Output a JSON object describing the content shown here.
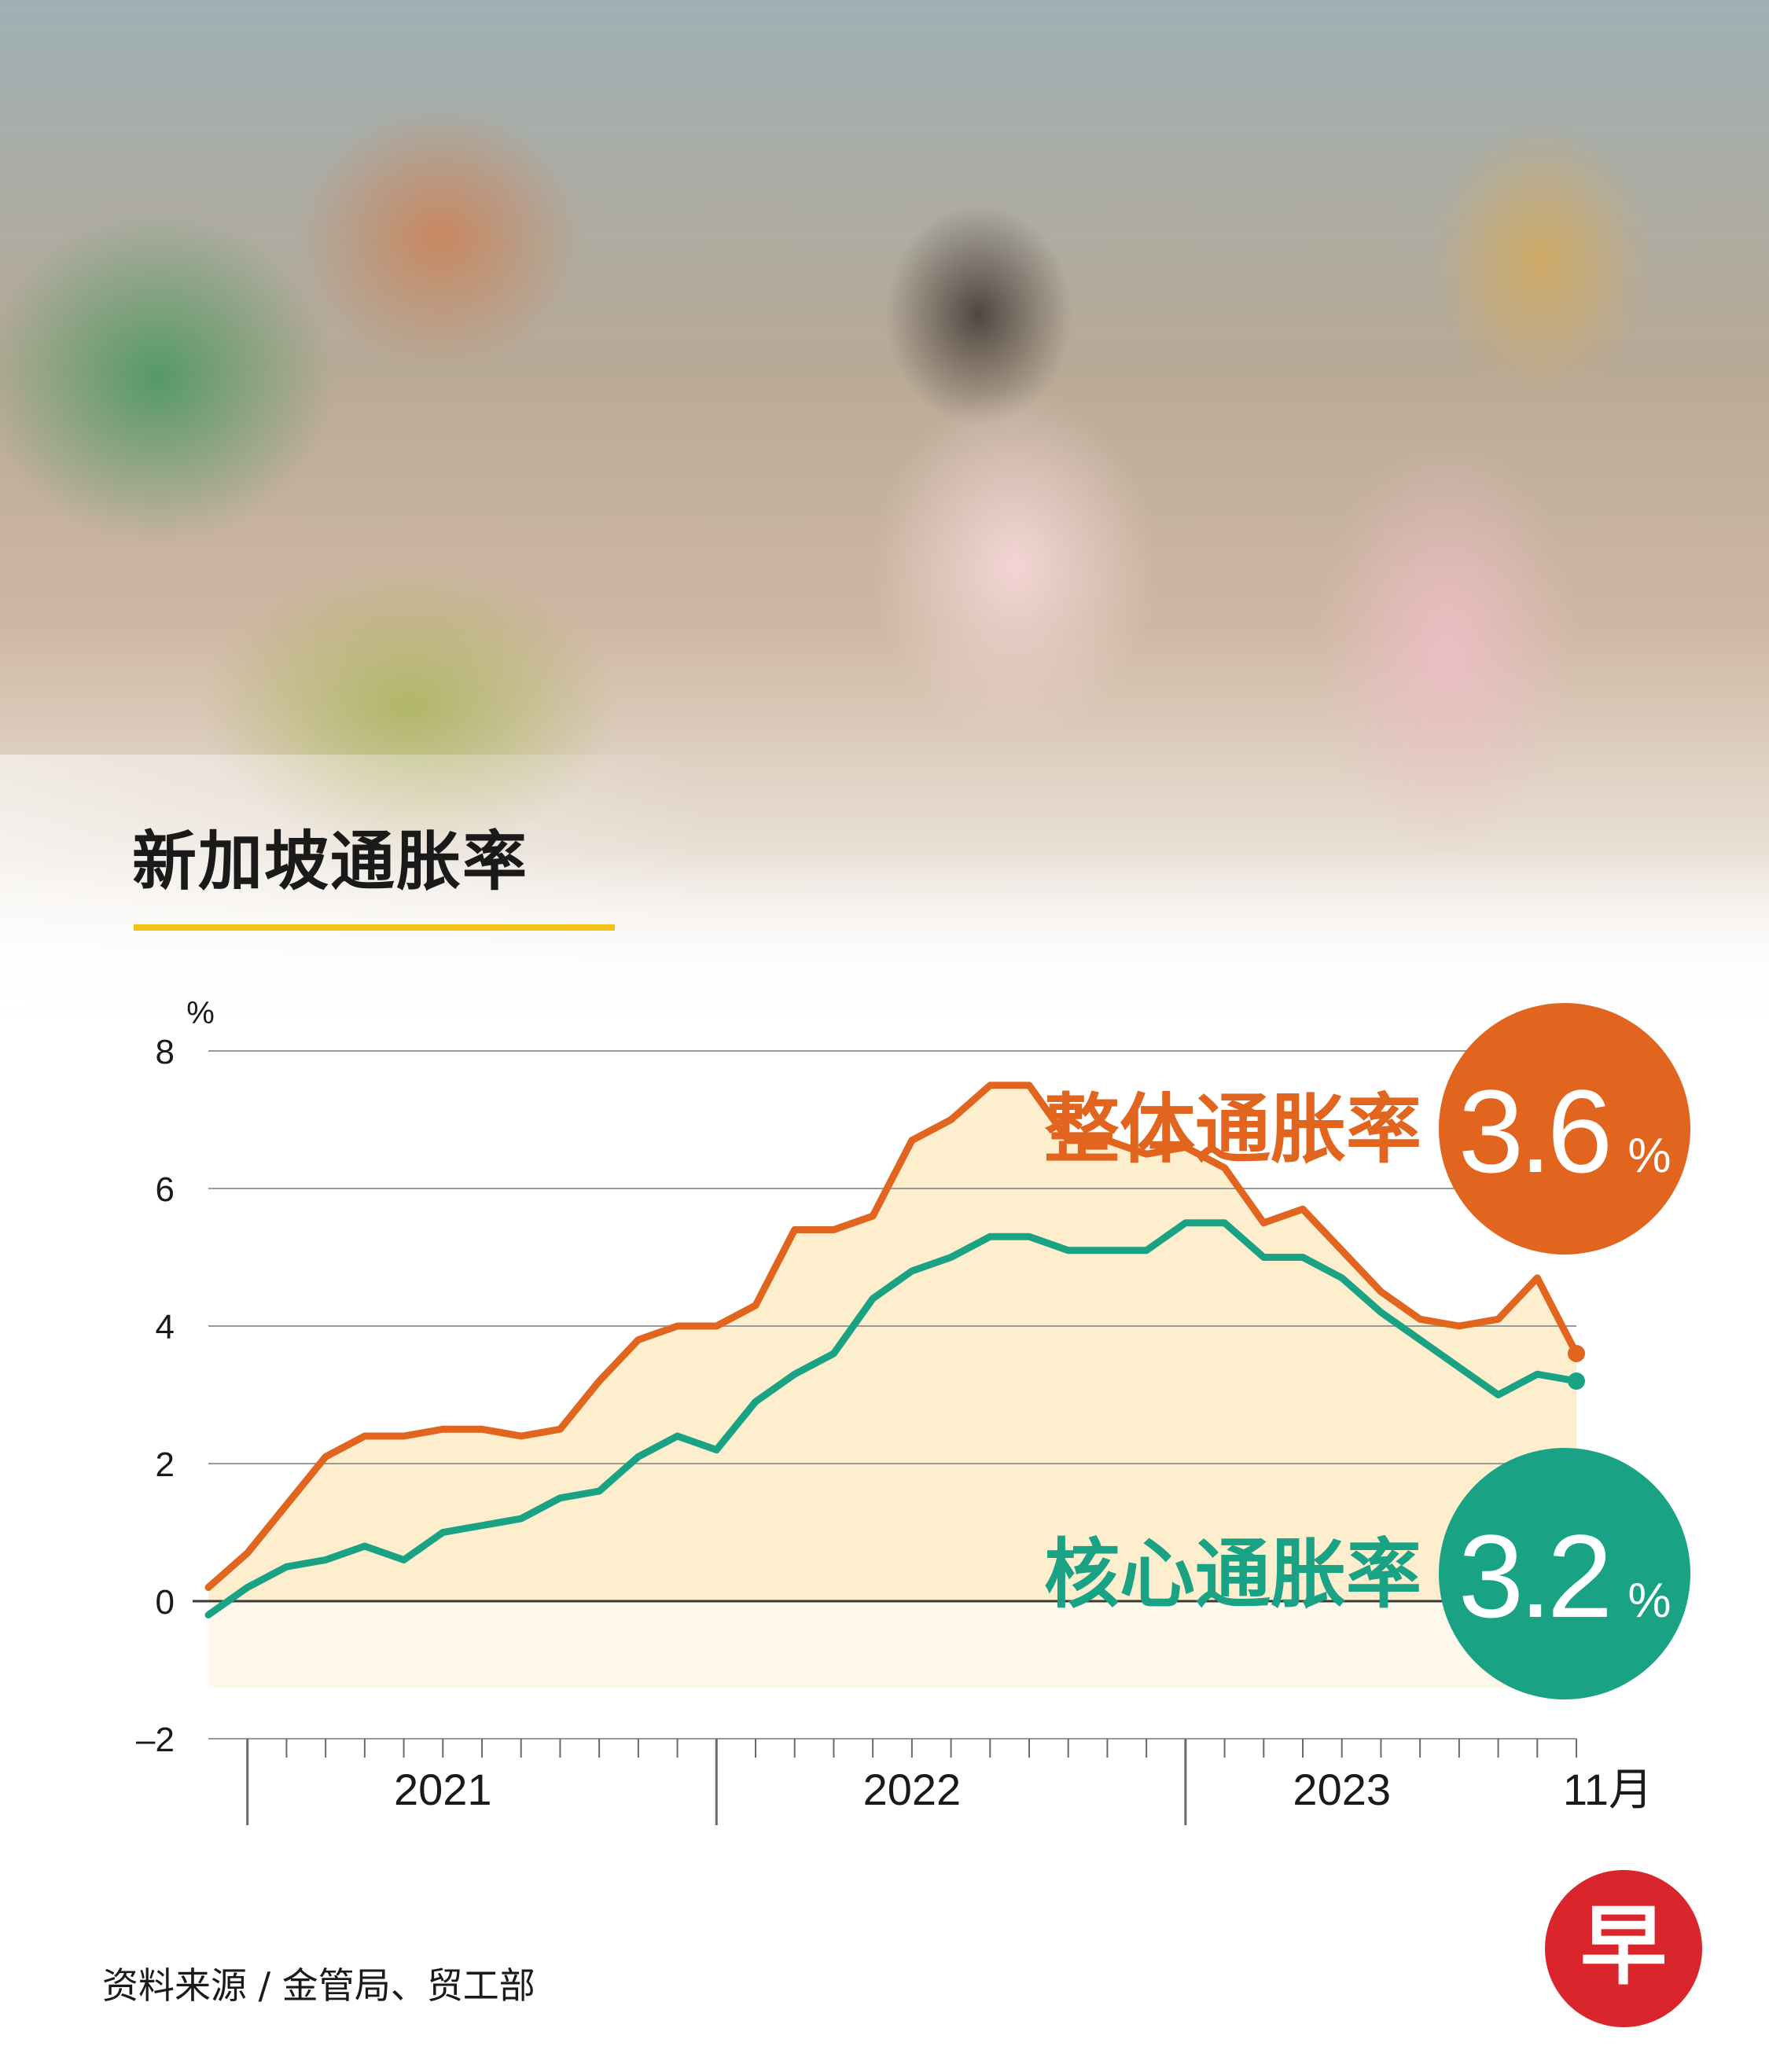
{
  "title": "新加坡通胀率",
  "source": "资料来源 / 金管局、贸工部",
  "logo_text": "早",
  "colors": {
    "headline": "#e1651e",
    "core": "#1aa284",
    "fill": "#fdebc6",
    "title_underline": "#f2c21b",
    "logo_red": "#d9252b"
  },
  "chart_data": {
    "type": "line",
    "ylabel": "%",
    "ylim": [
      -2,
      8
    ],
    "yticks": [
      -2,
      0,
      2,
      4,
      6,
      8
    ],
    "grid": true,
    "x": [
      "2020-12",
      "2021-01",
      "2021-02",
      "2021-03",
      "2021-04",
      "2021-05",
      "2021-06",
      "2021-07",
      "2021-08",
      "2021-09",
      "2021-10",
      "2021-11",
      "2021-12",
      "2022-01",
      "2022-02",
      "2022-03",
      "2022-04",
      "2022-05",
      "2022-06",
      "2022-07",
      "2022-08",
      "2022-09",
      "2022-10",
      "2022-11",
      "2022-12",
      "2023-01",
      "2023-02",
      "2023-03",
      "2023-04",
      "2023-05",
      "2023-06",
      "2023-07",
      "2023-08",
      "2023-09",
      "2023-10",
      "2023-11"
    ],
    "x_labels": [
      {
        "text": "2021",
        "at": "2021-06"
      },
      {
        "text": "2022",
        "at": "2022-06"
      },
      {
        "text": "2023",
        "at": "2023-05"
      },
      {
        "text": "11月",
        "at": "2023-11"
      }
    ],
    "series": [
      {
        "name": "整体通胀率",
        "color": "#e1651e",
        "latest": "3.6",
        "unit": "%",
        "values": [
          0.2,
          0.7,
          1.4,
          2.1,
          2.4,
          2.4,
          2.5,
          2.5,
          2.4,
          2.5,
          3.2,
          3.8,
          4.0,
          4.0,
          4.3,
          5.4,
          5.4,
          5.6,
          6.7,
          7.0,
          7.5,
          7.5,
          6.7,
          6.7,
          6.5,
          6.6,
          6.3,
          5.5,
          5.7,
          5.1,
          4.5,
          4.1,
          4.0,
          4.1,
          4.7,
          3.6
        ]
      },
      {
        "name": "核心通胀率",
        "color": "#1aa284",
        "latest": "3.2",
        "unit": "%",
        "values": [
          -0.2,
          0.2,
          0.5,
          0.6,
          0.8,
          0.6,
          1.0,
          1.1,
          1.2,
          1.5,
          1.6,
          2.1,
          2.4,
          2.2,
          2.9,
          3.3,
          3.6,
          4.4,
          4.8,
          5.0,
          5.3,
          5.3,
          5.1,
          5.1,
          5.1,
          5.5,
          5.5,
          5.0,
          5.0,
          4.7,
          4.2,
          3.8,
          3.4,
          3.0,
          3.3,
          3.2
        ]
      }
    ]
  }
}
